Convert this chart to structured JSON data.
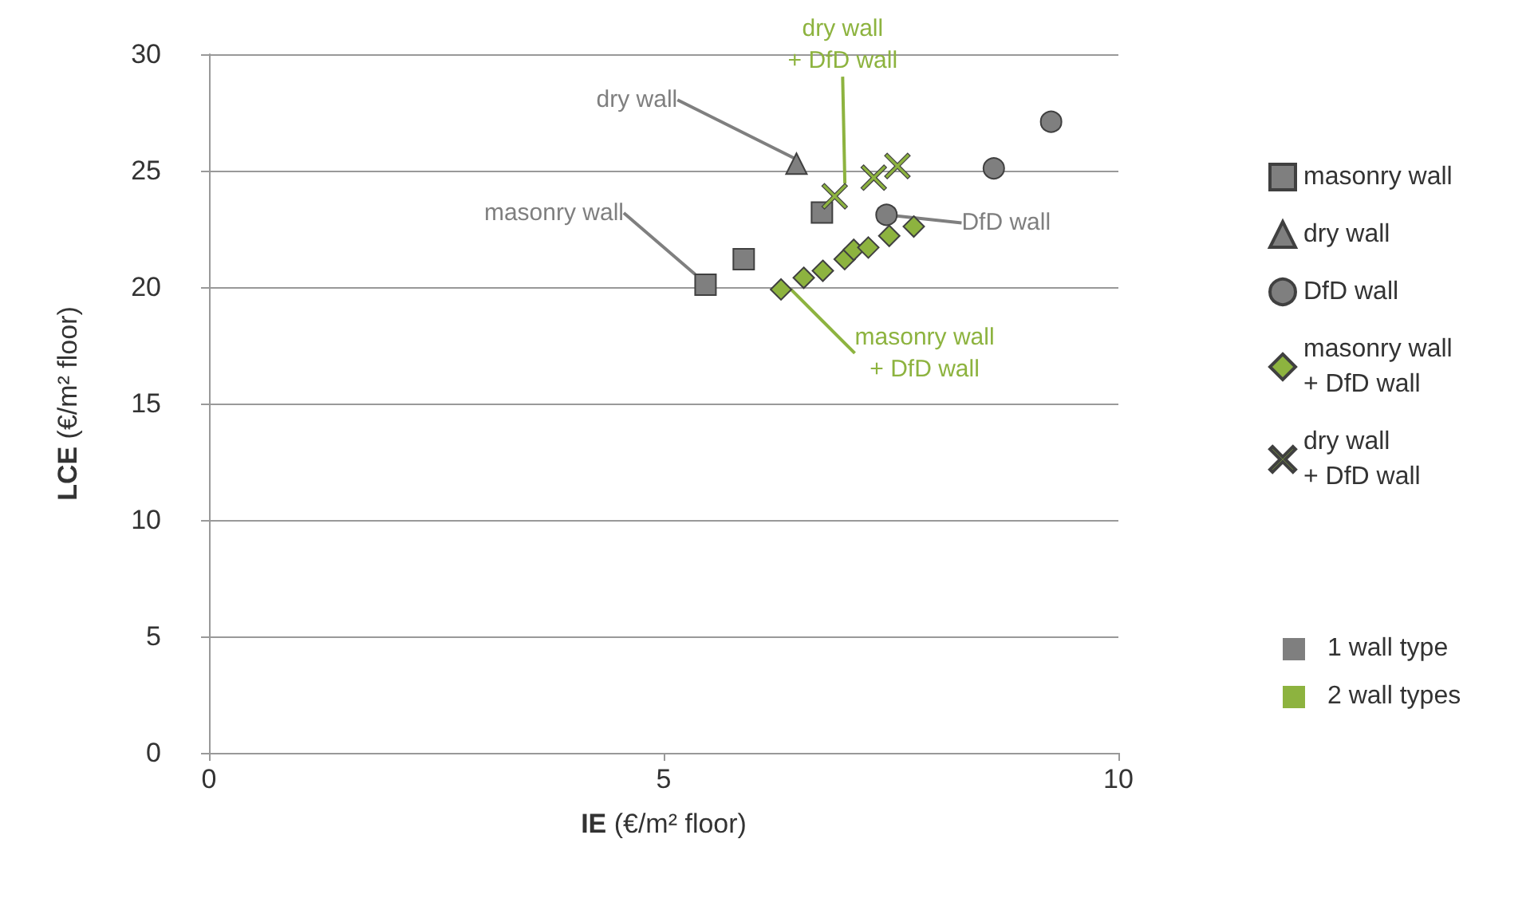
{
  "chart_data": {
    "type": "scatter",
    "xlabel": "IE (€/m² floor)",
    "ylabel": "LCE (€/m² floor)",
    "xlim": [
      0,
      10
    ],
    "xticks": [
      0,
      5,
      10
    ],
    "ylim": [
      0,
      30
    ],
    "yticks": [
      0,
      5,
      10,
      15,
      20,
      25,
      30
    ],
    "grid": "y",
    "legend": "right",
    "series": [
      {
        "name": "masonry wall",
        "color": "#7f7f7f",
        "marker": "square",
        "x": [
          5.46,
          5.88,
          6.74
        ],
        "values": [
          20.1,
          21.2,
          23.2
        ]
      },
      {
        "name": "dry wall",
        "color": "#7f7f7f",
        "marker": "triangle",
        "x": [
          6.46
        ],
        "values": [
          25.3
        ]
      },
      {
        "name": "DfD wall",
        "color": "#7f7f7f",
        "marker": "circle",
        "x": [
          7.45,
          8.63,
          9.26
        ],
        "values": [
          23.1,
          25.1,
          27.1
        ]
      },
      {
        "name": "masonry wall\n+ DfD wall",
        "color": "#8db33f",
        "marker": "diamond",
        "x": [
          6.29,
          6.54,
          6.75,
          6.99,
          7.09,
          7.25,
          7.48,
          7.75
        ],
        "values": [
          19.9,
          20.4,
          20.7,
          21.2,
          21.6,
          21.7,
          22.2,
          22.6
        ]
      },
      {
        "name": "dry wall\n+ DfD wall",
        "color": "#8db33f",
        "marker": "cross",
        "x": [
          6.88,
          7.31,
          7.57
        ],
        "values": [
          23.9,
          24.7,
          25.2
        ]
      }
    ],
    "annotations": [
      "1 wall type",
      "2 wall types"
    ]
  }
}
